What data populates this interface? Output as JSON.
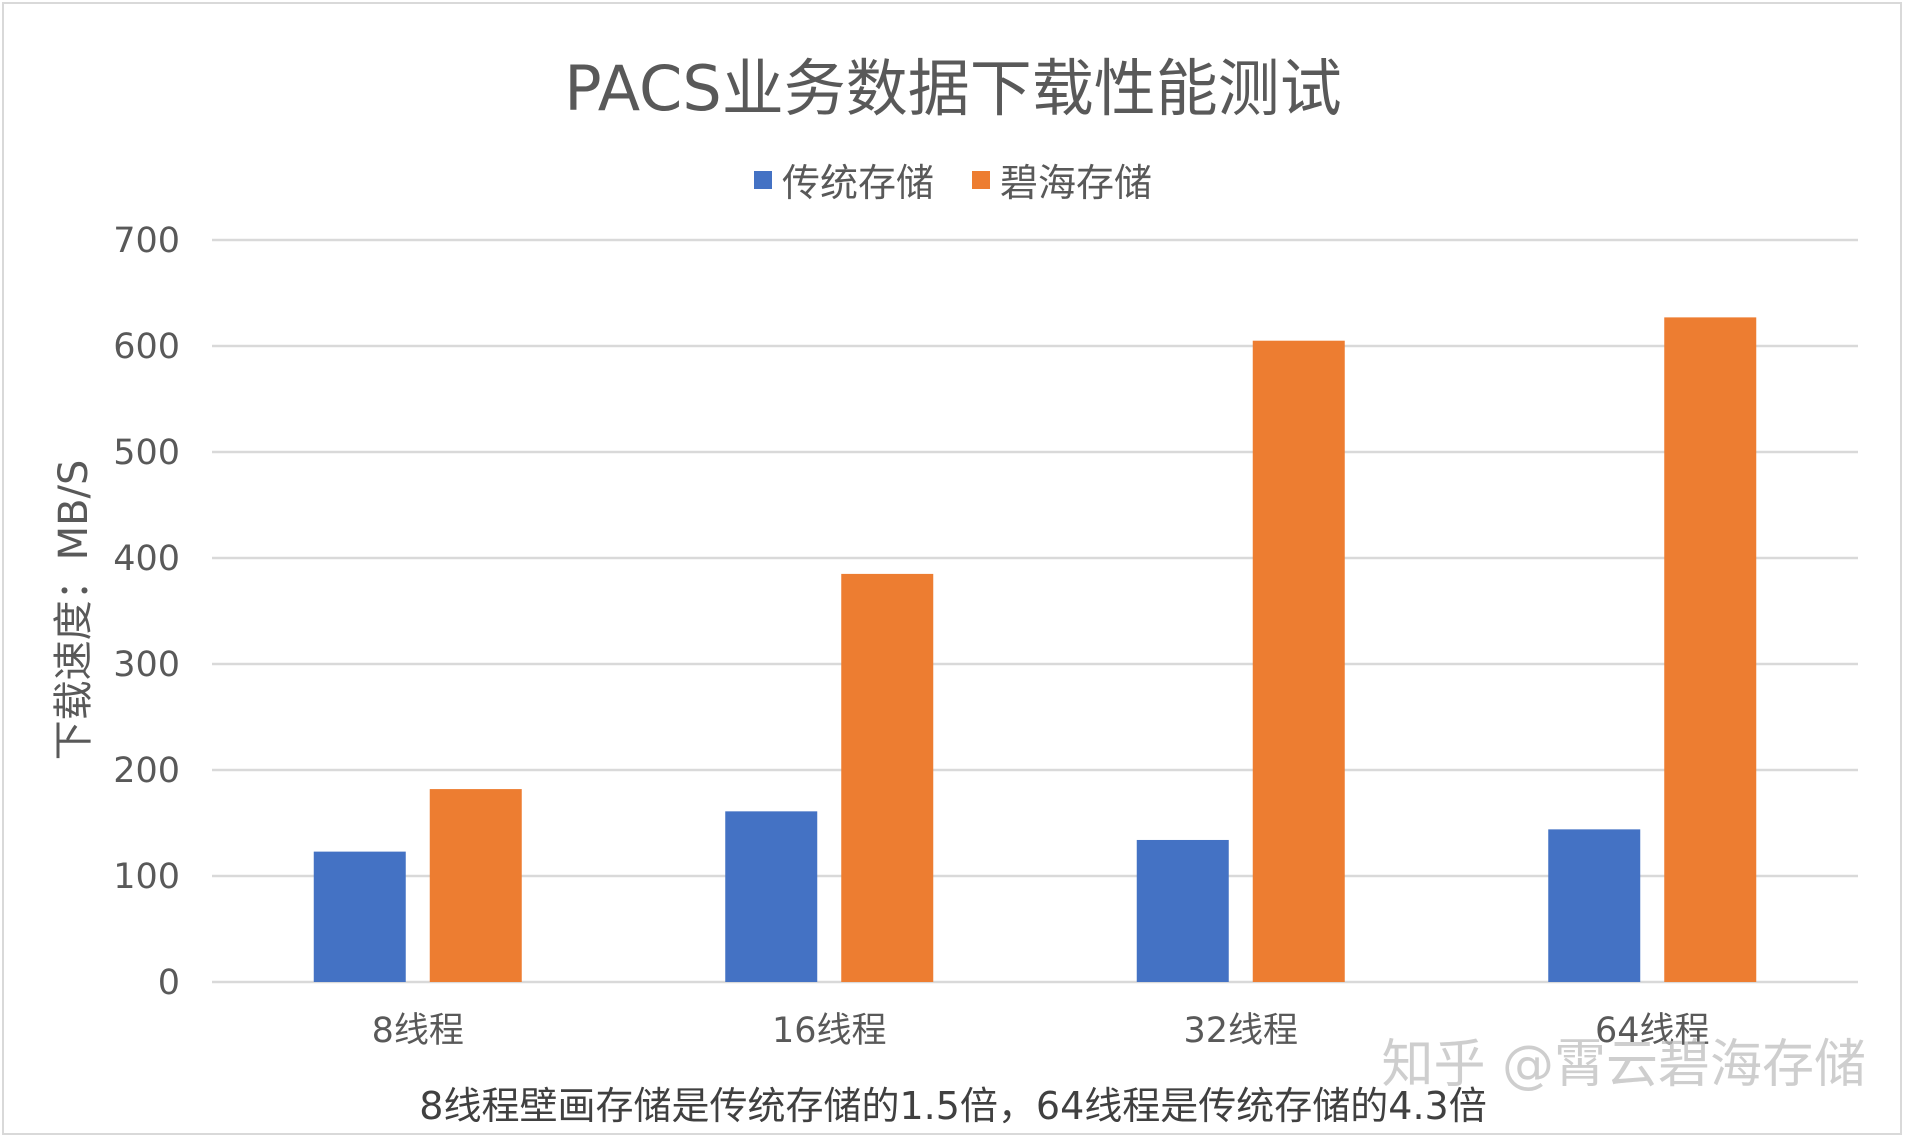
{
  "chart_data": {
    "type": "bar",
    "title": "PACS业务数据下载性能测试",
    "ylabel": "下载速度：MB/S",
    "xlabel": "",
    "categories": [
      "8线程",
      "16线程",
      "32线程",
      "64线程"
    ],
    "series": [
      {
        "name": "传统存储",
        "color": "#4472C4",
        "values": [
          123,
          161,
          134,
          144
        ]
      },
      {
        "name": "碧海存储",
        "color": "#ED7D31",
        "values": [
          182,
          385,
          605,
          627
        ]
      }
    ],
    "ylim": [
      0,
      700
    ],
    "yticks": [
      0,
      100,
      200,
      300,
      400,
      500,
      600,
      700
    ],
    "grid": true,
    "legend": "top-center"
  },
  "caption": "8线程壁画存储是传统存储的1.5倍，64线程是传统存储的4.3倍",
  "watermark": "知乎 @霄云碧海存储"
}
